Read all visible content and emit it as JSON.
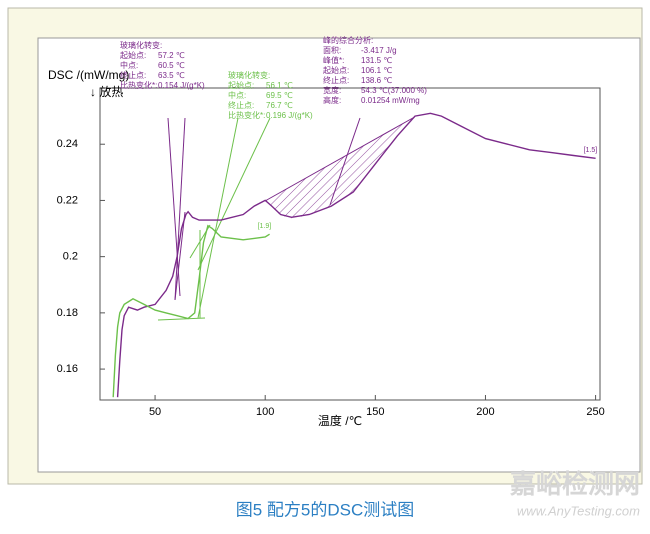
{
  "chart_data": {
    "type": "line",
    "y_label": "DSC /(mW/mg)",
    "y_direction": "↓ 放热",
    "x_label": "温度 /℃",
    "xlim": [
      25,
      252
    ],
    "ylim": [
      0.149,
      0.26
    ],
    "xticks": [
      50,
      100,
      150,
      200,
      250
    ],
    "yticks": [
      0.16,
      0.18,
      0.2,
      0.22,
      0.24
    ],
    "grid": false,
    "series": [
      {
        "color": "#7b2a8a",
        "end_label": "[1.5]",
        "x": [
          33,
          34,
          35,
          36,
          38,
          42,
          45,
          50,
          55,
          58,
          60,
          62,
          64,
          65,
          67,
          70,
          80,
          90,
          95,
          100,
          103,
          107,
          112,
          120,
          130,
          140,
          150,
          160,
          168,
          175,
          180,
          190,
          200,
          210,
          220,
          230,
          240,
          250
        ],
        "values": [
          0.15,
          0.163,
          0.174,
          0.179,
          0.182,
          0.181,
          0.182,
          0.183,
          0.188,
          0.193,
          0.2,
          0.21,
          0.215,
          0.216,
          0.214,
          0.213,
          0.213,
          0.215,
          0.218,
          0.22,
          0.218,
          0.215,
          0.214,
          0.215,
          0.218,
          0.223,
          0.233,
          0.243,
          0.25,
          0.251,
          0.25,
          0.246,
          0.242,
          0.24,
          0.238,
          0.237,
          0.236,
          0.235
        ]
      },
      {
        "color": "#6cc04a",
        "end_label": "[1.9]",
        "x": [
          31,
          32,
          33,
          34,
          36,
          38,
          40,
          45,
          50,
          55,
          60,
          65,
          68,
          70,
          72,
          74,
          76,
          80,
          90,
          100,
          102
        ],
        "values": [
          0.15,
          0.165,
          0.175,
          0.18,
          0.183,
          0.184,
          0.185,
          0.183,
          0.181,
          0.18,
          0.179,
          0.178,
          0.18,
          0.192,
          0.205,
          0.211,
          0.21,
          0.207,
          0.206,
          0.207,
          0.208
        ]
      }
    ],
    "annotations": [
      {
        "color": "#7b2a8a",
        "title": "玻璃化转变:",
        "rows": [
          [
            "起始点:",
            "57.2 ℃"
          ],
          [
            "中点:",
            "60.5 ℃"
          ],
          [
            "终止点:",
            "63.5 ℃"
          ],
          [
            "比热变化*:",
            "0.154 J/(g*K)"
          ]
        ]
      },
      {
        "color": "#6cc04a",
        "title": "玻璃化转变:",
        "rows": [
          [
            "起始点:",
            "56.1 ℃"
          ],
          [
            "中点:",
            "69.5 ℃"
          ],
          [
            "终止点:",
            "76.7 ℃"
          ],
          [
            "比热变化*:",
            "0.196 J/(g*K)"
          ]
        ]
      },
      {
        "color": "#7b2a8a",
        "title": "峰的综合分析:",
        "rows": [
          [
            "面积:",
            "-3.417 J/g"
          ],
          [
            "峰值*:",
            "131.5 ℃"
          ],
          [
            "起始点:",
            "106.1 ℃"
          ],
          [
            "终止点:",
            "138.6 ℃"
          ],
          [
            "宽度:",
            "54.3 ℃(37.000 %)"
          ],
          [
            "高度:",
            "0.01254 mW/mg"
          ]
        ]
      }
    ]
  },
  "caption": "图5 配方5的DSC测试图",
  "watermark": {
    "name": "嘉峪检测网",
    "url": "www.AnyTesting.com"
  }
}
